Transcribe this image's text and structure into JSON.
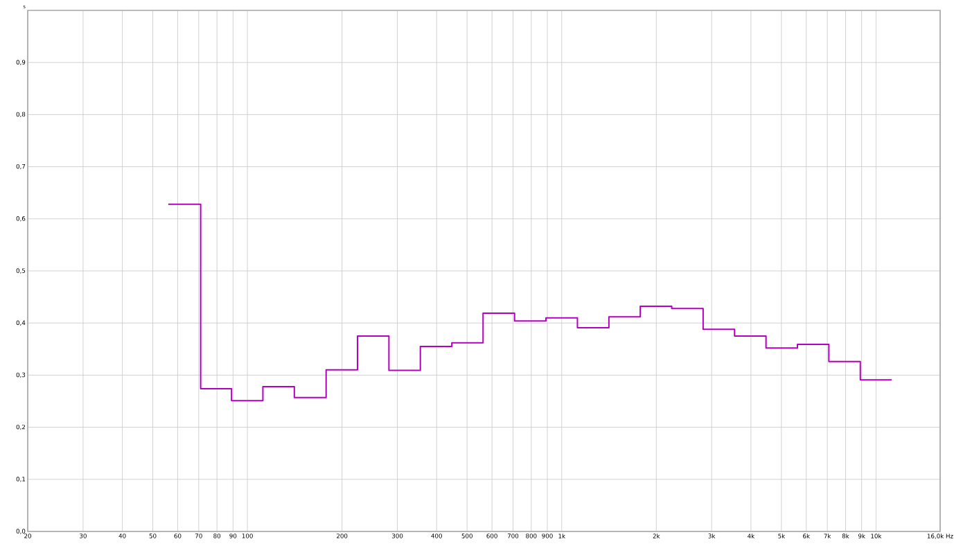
{
  "chart_data": {
    "type": "step",
    "ylabel": "s",
    "x": [
      56,
      71,
      89,
      112,
      141,
      178,
      224,
      282,
      355,
      447,
      562,
      708,
      891,
      1122,
      1413,
      1778,
      2239,
      2818,
      3548,
      4467,
      5623,
      7079,
      8913,
      11220
    ],
    "series": [
      {
        "color": "#b400c0",
        "values": [
          0.628,
          0.274,
          0.251,
          0.278,
          0.257,
          0.31,
          0.375,
          0.309,
          0.355,
          0.362,
          0.419,
          0.404,
          0.41,
          0.391,
          0.412,
          0.432,
          0.428,
          0.388,
          0.375,
          0.352,
          0.359,
          0.326,
          0.291,
          0.291
        ]
      }
    ],
    "log": "x",
    "xlim": [
      20,
      16000
    ],
    "ylim": [
      0,
      1
    ],
    "xticks": [
      20,
      30,
      40,
      50,
      60,
      70,
      80,
      90,
      100,
      200,
      300,
      400,
      500,
      600,
      700,
      800,
      900,
      {
        "value": 1000,
        "label": "1k"
      },
      {
        "value": 2000,
        "label": "2k"
      },
      {
        "value": 3000,
        "label": "3k"
      },
      {
        "value": 4000,
        "label": "4k"
      },
      {
        "value": 5000,
        "label": "5k"
      },
      {
        "value": 6000,
        "label": "6k"
      },
      {
        "value": 7000,
        "label": "7k"
      },
      {
        "value": 8000,
        "label": "8k"
      },
      {
        "value": 9000,
        "label": "9k"
      },
      {
        "value": 10000,
        "label": "10k"
      },
      {
        "value": 16000,
        "label": "16,0k Hz"
      }
    ],
    "yticks": [
      {
        "value": 0,
        "label": "0,0"
      },
      {
        "value": 0.1,
        "label": "0,1"
      },
      {
        "value": 0.2,
        "label": "0,2"
      },
      {
        "value": 0.3,
        "label": "0,3"
      },
      {
        "value": 0.4,
        "label": "0,4"
      },
      {
        "value": 0.5,
        "label": "0,5"
      },
      {
        "value": 0.6,
        "label": "0,6"
      },
      {
        "value": 0.7,
        "label": "0,7"
      },
      {
        "value": 0.8,
        "label": "0,8"
      },
      {
        "value": 0.9,
        "label": "0,9"
      }
    ],
    "grid": true
  }
}
